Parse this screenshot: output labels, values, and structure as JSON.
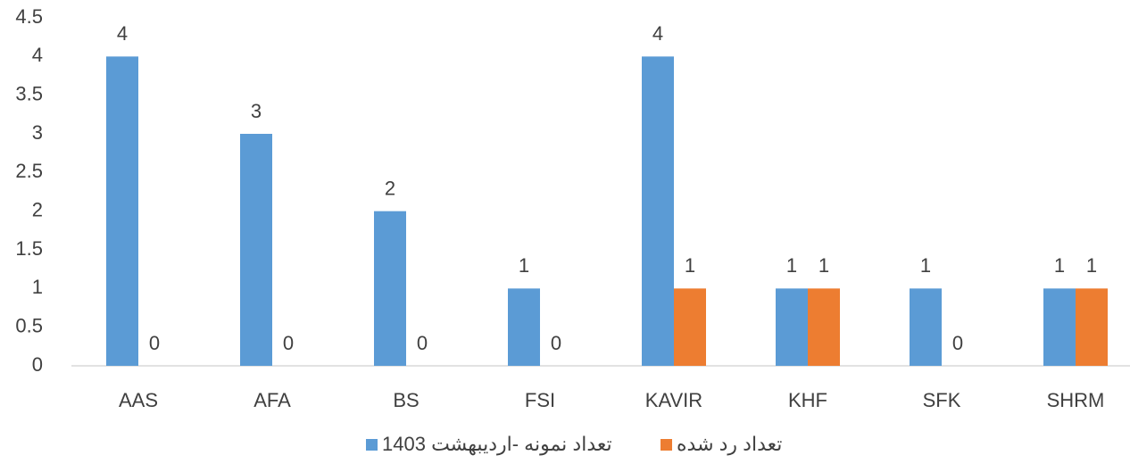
{
  "chart_data": {
    "type": "bar",
    "categories": [
      "AAS",
      "AFA",
      "BS",
      "FSI",
      "KAVIR",
      "KHF",
      "SFK",
      "SHRM"
    ],
    "series": [
      {
        "name": "تعداد نمونه -اردیبهشت 1403",
        "color": "#5b9bd5",
        "values": [
          4,
          3,
          2,
          1,
          4,
          1,
          1,
          1
        ]
      },
      {
        "name": "تعداد رد شده",
        "color": "#ed7d31",
        "values": [
          0,
          0,
          0,
          0,
          1,
          1,
          0,
          1
        ]
      }
    ],
    "ylim": [
      0,
      4.5
    ],
    "yticks": [
      0,
      0.5,
      1,
      1.5,
      2,
      2.5,
      3,
      3.5,
      4,
      4.5
    ],
    "grid": false,
    "legend": "bottom"
  }
}
